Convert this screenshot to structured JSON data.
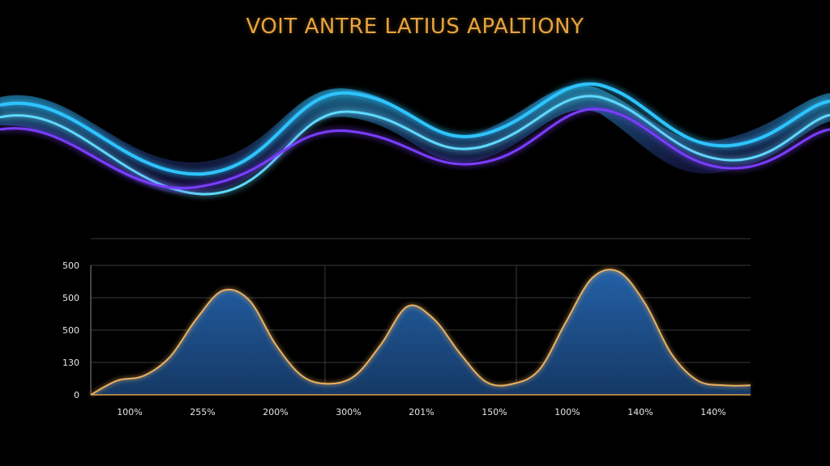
{
  "title": "VOIT ANTRE LATIUS APALTIONY",
  "colors": {
    "background": "#000000",
    "title": "#e8a33c",
    "area_fill": "#1f5a9a",
    "area_stroke": "#e8b060",
    "grid": "#3a3a3a",
    "wave_blue": "#2ec4ff",
    "wave_purple": "#7a3cff"
  },
  "chart_data": {
    "type": "area",
    "title": "VOIT ANTRE LATIUS APALTIONY",
    "xlabel": "",
    "ylabel": "",
    "y_tick_labels": [
      "0",
      "130",
      "500",
      "500",
      "500"
    ],
    "x_tick_labels": [
      "100%",
      "255%",
      "200%",
      "300%",
      "201%",
      "150%",
      "100%",
      "140%",
      "140%"
    ],
    "ylim": [
      0,
      4.1
    ],
    "xlim": [
      0,
      100
    ],
    "grid": true,
    "x": [
      0,
      4,
      8,
      12,
      16,
      20,
      24,
      28,
      32,
      36,
      40,
      44,
      48,
      52,
      56,
      60,
      64,
      68,
      72,
      76,
      80,
      84,
      88,
      92,
      96,
      100
    ],
    "values": [
      0.0,
      0.45,
      0.6,
      1.2,
      2.4,
      3.3,
      3.0,
      1.6,
      0.6,
      0.35,
      0.6,
      1.6,
      2.8,
      2.4,
      1.3,
      0.4,
      0.35,
      0.8,
      2.3,
      3.7,
      3.9,
      2.9,
      1.3,
      0.45,
      0.3,
      0.3
    ]
  }
}
